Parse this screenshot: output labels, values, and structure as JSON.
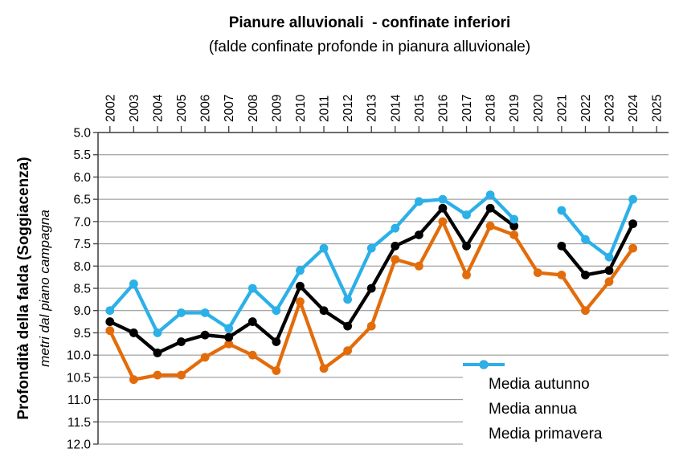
{
  "chart_data": {
    "type": "line",
    "title": "Pianure alluvionali  - confinate inferiori",
    "subtitle": "(falde confinate profonde in pianura alluvionale)",
    "y_axis_title": "Profondità della falda (Soggiacenza)",
    "y_axis_subtitle": "metri dal piano campagna",
    "ylim": [
      5.0,
      12.0
    ],
    "y_step": 0.5,
    "y_reversed": true,
    "grid": true,
    "legend_position": "bottom-right-inside",
    "categories": [
      "2002",
      "2003",
      "2004",
      "2005",
      "2006",
      "2007",
      "2008",
      "2009",
      "2010",
      "2011",
      "2012",
      "2013",
      "2014",
      "2015",
      "2016",
      "2017",
      "2018",
      "2019",
      "2020",
      "2021",
      "2022",
      "2023",
      "2024",
      "2025"
    ],
    "series": [
      {
        "name": "Media autunno",
        "color": "#E36C0A",
        "values": [
          9.45,
          10.55,
          10.45,
          10.45,
          10.05,
          9.75,
          10.0,
          10.35,
          8.8,
          10.3,
          9.9,
          9.35,
          7.85,
          8.0,
          7.0,
          8.2,
          7.1,
          7.3,
          8.15,
          8.2,
          9.0,
          8.35,
          7.6,
          null
        ]
      },
      {
        "name": "Media annua",
        "color": "#000000",
        "values": [
          9.25,
          9.5,
          9.95,
          9.7,
          9.55,
          9.6,
          9.25,
          9.7,
          8.45,
          9.0,
          9.35,
          8.5,
          7.55,
          7.3,
          6.7,
          7.55,
          6.7,
          7.1,
          null,
          7.55,
          8.2,
          8.1,
          7.05,
          null
        ]
      },
      {
        "name": "Media primavera",
        "color": "#2BB0E8",
        "values": [
          9.0,
          8.4,
          9.5,
          9.05,
          9.05,
          9.4,
          8.5,
          9.0,
          8.1,
          7.6,
          8.75,
          7.6,
          7.15,
          6.55,
          6.5,
          6.85,
          6.4,
          6.95,
          null,
          6.75,
          7.4,
          7.8,
          6.5,
          null
        ]
      }
    ]
  },
  "colors": {
    "gridline": "#8C8C8C",
    "axis": "#3B3B3B",
    "background": "#FFFFFF",
    "text": "#000000"
  }
}
